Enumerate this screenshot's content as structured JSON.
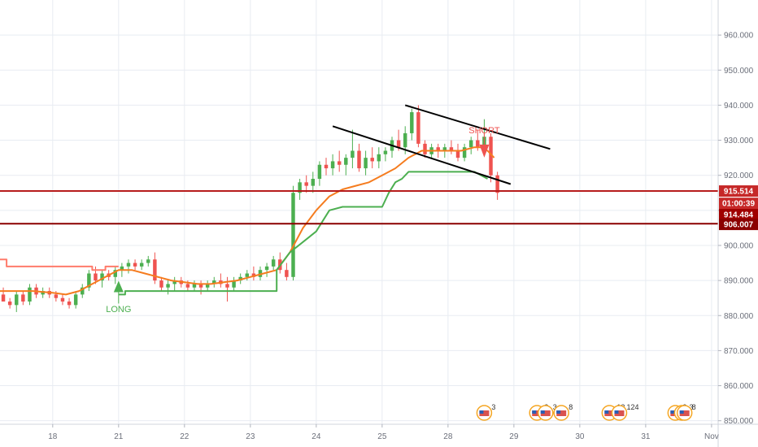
{
  "chart_data": {
    "type": "candlestick",
    "y_axis": {
      "min": 849,
      "max": 970,
      "ticks": [
        "850.000",
        "860.000",
        "870.000",
        "880.000",
        "890.000",
        "900.000",
        "910.000",
        "920.000",
        "930.000",
        "940.000",
        "950.000",
        "960.000"
      ]
    },
    "x_axis": {
      "min": 0,
      "max": 109,
      "labels": [
        {
          "text": "18",
          "x": 8
        },
        {
          "text": "21",
          "x": 18
        },
        {
          "text": "22",
          "x": 28
        },
        {
          "text": "23",
          "x": 38
        },
        {
          "text": "24",
          "x": 48
        },
        {
          "text": "25",
          "x": 58
        },
        {
          "text": "28",
          "x": 68
        },
        {
          "text": "29",
          "x": 78
        },
        {
          "text": "30",
          "x": 88
        },
        {
          "text": "31",
          "x": 98
        },
        {
          "text": "Nov",
          "x": 108
        }
      ]
    },
    "grid": true,
    "candles": [
      [
        886,
        888,
        884,
        884
      ],
      [
        884,
        885,
        882,
        883
      ],
      [
        883,
        887,
        881,
        886
      ],
      [
        886,
        887,
        883,
        884
      ],
      [
        884,
        889,
        883,
        888
      ],
      [
        888,
        889,
        885,
        886
      ],
      [
        886,
        888,
        885,
        887
      ],
      [
        887,
        888,
        885,
        886
      ],
      [
        886,
        887,
        884,
        885
      ],
      [
        885,
        886,
        883,
        884
      ],
      [
        884,
        885,
        882,
        883
      ],
      [
        883,
        887,
        882,
        886
      ],
      [
        886,
        889,
        885,
        888
      ],
      [
        888,
        893,
        887,
        892
      ],
      [
        892,
        894,
        889,
        890
      ],
      [
        890,
        893,
        888,
        892
      ],
      [
        892,
        893,
        890,
        891
      ],
      [
        891,
        894,
        889,
        893
      ],
      [
        893,
        895,
        891,
        894
      ],
      [
        894,
        896,
        892,
        895
      ],
      [
        895,
        896,
        893,
        894
      ],
      [
        894,
        896,
        893,
        895
      ],
      [
        895,
        897,
        894,
        896
      ],
      [
        896,
        898,
        889,
        890
      ],
      [
        890,
        891,
        887,
        888
      ],
      [
        888,
        890,
        886,
        889
      ],
      [
        889,
        891,
        887,
        890
      ],
      [
        890,
        891,
        888,
        889
      ],
      [
        889,
        890,
        887,
        888
      ],
      [
        888,
        890,
        887,
        889
      ],
      [
        889,
        890,
        886,
        888
      ],
      [
        888,
        890,
        887,
        889
      ],
      [
        889,
        891,
        888,
        890
      ],
      [
        890,
        892,
        888,
        889
      ],
      [
        889,
        891,
        884,
        888
      ],
      [
        888,
        891,
        887,
        890
      ],
      [
        890,
        892,
        889,
        891
      ],
      [
        891,
        893,
        890,
        892
      ],
      [
        892,
        894,
        890,
        891
      ],
      [
        891,
        894,
        890,
        893
      ],
      [
        893,
        895,
        891,
        894
      ],
      [
        894,
        897,
        893,
        896
      ],
      [
        896,
        898,
        892,
        893
      ],
      [
        893,
        895,
        890,
        891
      ],
      [
        891,
        917,
        890,
        915
      ],
      [
        915,
        919,
        913,
        918
      ],
      [
        918,
        920,
        915,
        917
      ],
      [
        917,
        921,
        915,
        919
      ],
      [
        919,
        924,
        917,
        923
      ],
      [
        923,
        925,
        920,
        922
      ],
      [
        922,
        926,
        920,
        924
      ],
      [
        924,
        927,
        921,
        923
      ],
      [
        923,
        926,
        920,
        925
      ],
      [
        925,
        933,
        922,
        927
      ],
      [
        927,
        929,
        921,
        922
      ],
      [
        922,
        927,
        920,
        925
      ],
      [
        925,
        928,
        922,
        924
      ],
      [
        924,
        928,
        922,
        926
      ],
      [
        926,
        928,
        924,
        927
      ],
      [
        927,
        931,
        925,
        930
      ],
      [
        930,
        933,
        927,
        928
      ],
      [
        928,
        934,
        926,
        932
      ],
      [
        932,
        939,
        930,
        938
      ],
      [
        938,
        940,
        928,
        929
      ],
      [
        929,
        930,
        925,
        926
      ],
      [
        926,
        929,
        925,
        928
      ],
      [
        928,
        929,
        925,
        927
      ],
      [
        927,
        929,
        925,
        928
      ],
      [
        928,
        930,
        926,
        927
      ],
      [
        927,
        929,
        924,
        925
      ],
      [
        925,
        929,
        924,
        928
      ],
      [
        928,
        931,
        926,
        930
      ],
      [
        930,
        933,
        927,
        928
      ],
      [
        928,
        936,
        927,
        931
      ],
      [
        931,
        932,
        918,
        920
      ],
      [
        920,
        921,
        913,
        915
      ]
    ],
    "indicators": [
      {
        "type": "line",
        "color": "#f57c1f",
        "points": [
          [
            0,
            887
          ],
          [
            5,
            887
          ],
          [
            8,
            886.5
          ],
          [
            10,
            886
          ],
          [
            12,
            887
          ],
          [
            14,
            889
          ],
          [
            16,
            891
          ],
          [
            18,
            893
          ],
          [
            20,
            893
          ],
          [
            22,
            892
          ],
          [
            24,
            891
          ],
          [
            26,
            890
          ],
          [
            28,
            889.5
          ],
          [
            30,
            889
          ],
          [
            32,
            889
          ],
          [
            34,
            889.5
          ],
          [
            36,
            890
          ],
          [
            38,
            891
          ],
          [
            40,
            892
          ],
          [
            42,
            893
          ],
          [
            44,
            898
          ],
          [
            46,
            905
          ],
          [
            48,
            910
          ],
          [
            50,
            914
          ],
          [
            52,
            916
          ],
          [
            54,
            917
          ],
          [
            56,
            918
          ],
          [
            58,
            920
          ],
          [
            60,
            922
          ],
          [
            62,
            925
          ],
          [
            64,
            927
          ],
          [
            66,
            927
          ],
          [
            68,
            927
          ],
          [
            70,
            927
          ],
          [
            72,
            928
          ],
          [
            73,
            928
          ],
          [
            74,
            927
          ],
          [
            75,
            925
          ]
        ]
      },
      {
        "type": "step",
        "color": "#ff7b6b",
        "points": [
          [
            0,
            896
          ],
          [
            1,
            896
          ],
          [
            1,
            894
          ],
          [
            14,
            894
          ],
          [
            14,
            893
          ],
          [
            16,
            893
          ],
          [
            16,
            894
          ],
          [
            18,
            894
          ]
        ]
      },
      {
        "type": "step",
        "color": "#4caf50",
        "points": [
          [
            18,
            886
          ],
          [
            18,
            886
          ],
          [
            19,
            886
          ],
          [
            19,
            887
          ],
          [
            34,
            887
          ],
          [
            34,
            887
          ],
          [
            42,
            887
          ],
          [
            42,
            893
          ],
          [
            44,
            898
          ],
          [
            46,
            901
          ],
          [
            48,
            904
          ],
          [
            50,
            910
          ],
          [
            52,
            911
          ],
          [
            54,
            911
          ],
          [
            56,
            911
          ],
          [
            58,
            911
          ],
          [
            59,
            915
          ],
          [
            60,
            918
          ],
          [
            61,
            919
          ],
          [
            62,
            921
          ],
          [
            64,
            921
          ],
          [
            66,
            921
          ],
          [
            68,
            921
          ],
          [
            70,
            921
          ],
          [
            72,
            921
          ],
          [
            74,
            919
          ]
        ]
      }
    ],
    "trendlines": [
      {
        "from": [
          50.5,
          934
        ],
        "to": [
          77.5,
          917.5
        ],
        "color": "#000000"
      },
      {
        "from": [
          61.5,
          940
        ],
        "to": [
          83.5,
          927.5
        ],
        "color": "#000000"
      }
    ],
    "horizontal_lines": [
      {
        "y": 915.514,
        "color": "#b71c1c"
      },
      {
        "y": 906.2,
        "color": "#8b0000"
      }
    ],
    "price_labels": [
      {
        "y": 915.514,
        "text": "915.514",
        "color": "#c62828"
      },
      {
        "y": 912.0,
        "text": "01:00:39",
        "color": "#c62828"
      },
      {
        "y": 908.8,
        "text": "914.484",
        "color": "#a00000"
      },
      {
        "y": 906.0,
        "text": "906.007",
        "color": "#8b0000"
      }
    ],
    "annotations": [
      {
        "text": "LONG",
        "x": 18,
        "y": 881,
        "color": "#4caf50",
        "arrow": "up",
        "arrow_y": 889
      },
      {
        "text": "SHORT",
        "x": 73.5,
        "y": 932,
        "color": "#ef5350",
        "arrow": "down",
        "arrow_y": 926
      }
    ],
    "events": [
      {
        "x": 73.5,
        "count": "3"
      },
      {
        "x": 81.5,
        "count": "2"
      },
      {
        "x": 82.8,
        "count": "3"
      },
      {
        "x": 85.2,
        "count": "8"
      },
      {
        "x": 92.5,
        "count": "12"
      },
      {
        "x": 94.0,
        "count": "124"
      },
      {
        "x": 102.5,
        "count": "3"
      },
      {
        "x": 103.5,
        "count": "3"
      },
      {
        "x": 103.9,
        "count": "8"
      }
    ],
    "colors": {
      "up": "#26a69a",
      "up_fill": "#4caf50",
      "down": "#ef5350",
      "grid": "#e8ecf2",
      "axis_text": "#6b6f7a"
    }
  }
}
